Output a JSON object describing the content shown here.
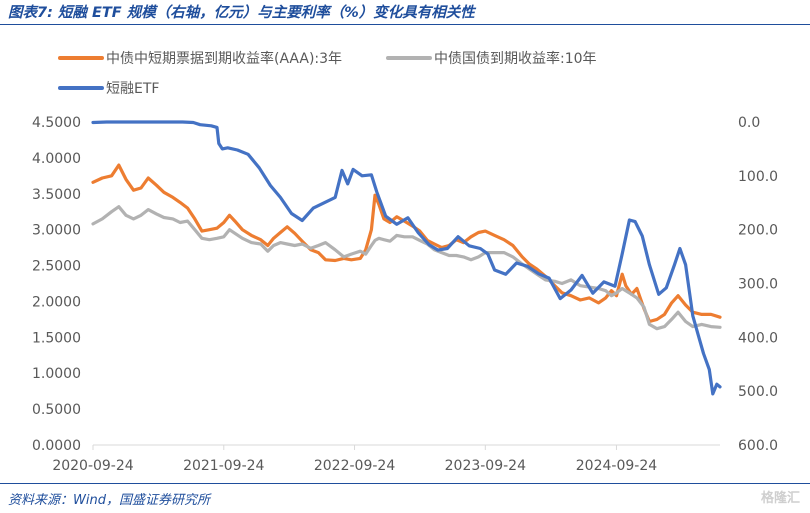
{
  "header": {
    "title": "图表7: 短融 ETF 规模（右轴，亿元）与主要利率（%）变化具有相关性"
  },
  "footer": {
    "source": "资料来源：Wind，国盛证券研究所",
    "watermark": "格隆汇"
  },
  "colors": {
    "brand": "#1f4e9c",
    "series_orange": "#ed7d31",
    "series_gray": "#b2b2b2",
    "series_blue": "#4472c4",
    "axis_text": "#595959",
    "axis_line": "#d9d9d9"
  },
  "chart_data": {
    "type": "line",
    "legend_position": "top-left",
    "grid": false,
    "x_ticks": [
      "2020-09-24",
      "2021-09-24",
      "2022-09-24",
      "2023-09-24",
      "2024-09-24"
    ],
    "x_range": [
      "2020-09-24",
      "2025-07-10"
    ],
    "ylim_left": [
      0,
      4.5
    ],
    "yticks_left": [
      "0.0000",
      "0.5000",
      "1.0000",
      "1.5000",
      "2.0000",
      "2.5000",
      "3.0000",
      "3.5000",
      "4.0000",
      "4.5000"
    ],
    "ylim_right": [
      0,
      600
    ],
    "right_axis_inverted": true,
    "yticks_right": [
      "0.0",
      "100.0",
      "200.0",
      "300.0",
      "400.0",
      "500.0",
      "600.0"
    ],
    "series": [
      {
        "name": "中债中短期票据到期收益率(AAA):3年",
        "axis": "left",
        "color": "#ed7d31",
        "points": [
          [
            "2020-09-24",
            3.66
          ],
          [
            "2020-10-20",
            3.72
          ],
          [
            "2020-11-15",
            3.75
          ],
          [
            "2020-12-05",
            3.9
          ],
          [
            "2020-12-25",
            3.7
          ],
          [
            "2021-01-15",
            3.55
          ],
          [
            "2021-02-05",
            3.58
          ],
          [
            "2021-02-25",
            3.72
          ],
          [
            "2021-03-20",
            3.62
          ],
          [
            "2021-04-10",
            3.52
          ],
          [
            "2021-05-05",
            3.45
          ],
          [
            "2021-05-25",
            3.38
          ],
          [
            "2021-06-15",
            3.3
          ],
          [
            "2021-07-05",
            3.15
          ],
          [
            "2021-07-25",
            2.98
          ],
          [
            "2021-08-15",
            3.0
          ],
          [
            "2021-09-05",
            3.02
          ],
          [
            "2021-09-24",
            3.1
          ],
          [
            "2021-10-10",
            3.2
          ],
          [
            "2021-10-25",
            3.12
          ],
          [
            "2021-11-15",
            3.0
          ],
          [
            "2021-12-10",
            2.92
          ],
          [
            "2022-01-05",
            2.86
          ],
          [
            "2022-01-25",
            2.78
          ],
          [
            "2022-02-10",
            2.88
          ],
          [
            "2022-03-01",
            2.96
          ],
          [
            "2022-03-20",
            3.04
          ],
          [
            "2022-04-10",
            2.95
          ],
          [
            "2022-05-01",
            2.84
          ],
          [
            "2022-05-25",
            2.72
          ],
          [
            "2022-06-15",
            2.68
          ],
          [
            "2022-07-05",
            2.58
          ],
          [
            "2022-08-01",
            2.57
          ],
          [
            "2022-08-25",
            2.6
          ],
          [
            "2022-09-15",
            2.58
          ],
          [
            "2022-10-10",
            2.6
          ],
          [
            "2022-10-25",
            2.72
          ],
          [
            "2022-11-10",
            3.0
          ],
          [
            "2022-11-20",
            3.48
          ],
          [
            "2022-12-01",
            3.35
          ],
          [
            "2022-12-15",
            3.15
          ],
          [
            "2023-01-01",
            3.1
          ],
          [
            "2023-01-20",
            3.18
          ],
          [
            "2023-02-10",
            3.12
          ],
          [
            "2023-03-05",
            3.05
          ],
          [
            "2023-03-25",
            2.98
          ],
          [
            "2023-04-15",
            2.85
          ],
          [
            "2023-05-05",
            2.8
          ],
          [
            "2023-05-25",
            2.75
          ],
          [
            "2023-06-15",
            2.78
          ],
          [
            "2023-07-05",
            2.86
          ],
          [
            "2023-07-25",
            2.82
          ],
          [
            "2023-08-15",
            2.9
          ],
          [
            "2023-09-05",
            2.96
          ],
          [
            "2023-09-24",
            2.98
          ],
          [
            "2023-10-20",
            2.92
          ],
          [
            "2023-11-15",
            2.86
          ],
          [
            "2023-12-10",
            2.78
          ],
          [
            "2024-01-05",
            2.62
          ],
          [
            "2024-01-25",
            2.52
          ],
          [
            "2024-02-15",
            2.45
          ],
          [
            "2024-03-10",
            2.35
          ],
          [
            "2024-04-05",
            2.22
          ],
          [
            "2024-04-25",
            2.12
          ],
          [
            "2024-05-20",
            2.08
          ],
          [
            "2024-06-15",
            2.02
          ],
          [
            "2024-07-10",
            2.05
          ],
          [
            "2024-08-05",
            1.98
          ],
          [
            "2024-08-25",
            2.05
          ],
          [
            "2024-09-10",
            2.15
          ],
          [
            "2024-09-24",
            2.08
          ],
          [
            "2024-10-10",
            2.38
          ],
          [
            "2024-10-20",
            2.22
          ],
          [
            "2024-11-05",
            2.1
          ],
          [
            "2024-11-20",
            2.18
          ],
          [
            "2024-12-10",
            1.9
          ],
          [
            "2024-12-25",
            1.72
          ],
          [
            "2025-01-15",
            1.75
          ],
          [
            "2025-02-05",
            1.82
          ],
          [
            "2025-02-25",
            1.98
          ],
          [
            "2025-03-15",
            2.08
          ],
          [
            "2025-04-05",
            1.95
          ],
          [
            "2025-04-25",
            1.85
          ],
          [
            "2025-05-20",
            1.82
          ],
          [
            "2025-06-15",
            1.82
          ],
          [
            "2025-07-10",
            1.78
          ]
        ]
      },
      {
        "name": "中债国债到期收益率:10年",
        "axis": "left",
        "color": "#b2b2b2",
        "points": [
          [
            "2020-09-24",
            3.08
          ],
          [
            "2020-10-20",
            3.15
          ],
          [
            "2020-11-15",
            3.25
          ],
          [
            "2020-12-05",
            3.32
          ],
          [
            "2020-12-25",
            3.2
          ],
          [
            "2021-01-15",
            3.15
          ],
          [
            "2021-02-05",
            3.2
          ],
          [
            "2021-02-25",
            3.28
          ],
          [
            "2021-03-20",
            3.22
          ],
          [
            "2021-04-10",
            3.17
          ],
          [
            "2021-05-05",
            3.15
          ],
          [
            "2021-05-25",
            3.1
          ],
          [
            "2021-06-15",
            3.12
          ],
          [
            "2021-07-05",
            3.0
          ],
          [
            "2021-07-25",
            2.88
          ],
          [
            "2021-08-15",
            2.86
          ],
          [
            "2021-09-05",
            2.88
          ],
          [
            "2021-09-24",
            2.9
          ],
          [
            "2021-10-10",
            3.0
          ],
          [
            "2021-10-25",
            2.95
          ],
          [
            "2021-11-15",
            2.88
          ],
          [
            "2021-12-10",
            2.82
          ],
          [
            "2022-01-05",
            2.8
          ],
          [
            "2022-01-25",
            2.7
          ],
          [
            "2022-02-10",
            2.78
          ],
          [
            "2022-03-01",
            2.82
          ],
          [
            "2022-03-20",
            2.8
          ],
          [
            "2022-04-10",
            2.78
          ],
          [
            "2022-05-01",
            2.8
          ],
          [
            "2022-05-25",
            2.74
          ],
          [
            "2022-06-15",
            2.78
          ],
          [
            "2022-07-05",
            2.82
          ],
          [
            "2022-08-01",
            2.72
          ],
          [
            "2022-08-25",
            2.62
          ],
          [
            "2022-09-15",
            2.66
          ],
          [
            "2022-10-10",
            2.7
          ],
          [
            "2022-10-25",
            2.66
          ],
          [
            "2022-11-10",
            2.78
          ],
          [
            "2022-11-20",
            2.85
          ],
          [
            "2022-12-01",
            2.88
          ],
          [
            "2022-12-15",
            2.86
          ],
          [
            "2023-01-01",
            2.84
          ],
          [
            "2023-01-20",
            2.92
          ],
          [
            "2023-02-10",
            2.9
          ],
          [
            "2023-03-05",
            2.9
          ],
          [
            "2023-03-25",
            2.85
          ],
          [
            "2023-04-15",
            2.8
          ],
          [
            "2023-05-05",
            2.72
          ],
          [
            "2023-05-25",
            2.68
          ],
          [
            "2023-06-15",
            2.64
          ],
          [
            "2023-07-05",
            2.64
          ],
          [
            "2023-07-25",
            2.62
          ],
          [
            "2023-08-15",
            2.58
          ],
          [
            "2023-09-05",
            2.62
          ],
          [
            "2023-09-24",
            2.68
          ],
          [
            "2023-10-20",
            2.68
          ],
          [
            "2023-11-15",
            2.68
          ],
          [
            "2023-12-10",
            2.62
          ],
          [
            "2024-01-05",
            2.52
          ],
          [
            "2024-01-25",
            2.45
          ],
          [
            "2024-02-15",
            2.38
          ],
          [
            "2024-03-10",
            2.3
          ],
          [
            "2024-04-05",
            2.28
          ],
          [
            "2024-04-25",
            2.25
          ],
          [
            "2024-05-20",
            2.3
          ],
          [
            "2024-06-15",
            2.22
          ],
          [
            "2024-07-10",
            2.2
          ],
          [
            "2024-08-05",
            2.18
          ],
          [
            "2024-08-25",
            2.15
          ],
          [
            "2024-09-10",
            2.08
          ],
          [
            "2024-09-24",
            2.12
          ],
          [
            "2024-10-10",
            2.18
          ],
          [
            "2024-10-20",
            2.15
          ],
          [
            "2024-11-05",
            2.1
          ],
          [
            "2024-11-20",
            2.05
          ],
          [
            "2024-12-10",
            1.92
          ],
          [
            "2024-12-25",
            1.68
          ],
          [
            "2025-01-15",
            1.62
          ],
          [
            "2025-02-05",
            1.65
          ],
          [
            "2025-02-25",
            1.75
          ],
          [
            "2025-03-15",
            1.85
          ],
          [
            "2025-04-05",
            1.72
          ],
          [
            "2025-04-25",
            1.65
          ],
          [
            "2025-05-20",
            1.68
          ],
          [
            "2025-06-15",
            1.65
          ],
          [
            "2025-07-10",
            1.64
          ]
        ]
      },
      {
        "name": "短融ETF",
        "axis": "right",
        "color": "#4472c4",
        "points": [
          [
            "2020-09-24",
            1
          ],
          [
            "2020-11-01",
            0
          ],
          [
            "2021-01-01",
            0
          ],
          [
            "2021-03-01",
            0
          ],
          [
            "2021-05-01",
            0
          ],
          [
            "2021-06-01",
            0
          ],
          [
            "2021-07-01",
            1
          ],
          [
            "2021-07-20",
            5
          ],
          [
            "2021-08-20",
            7
          ],
          [
            "2021-09-05",
            10
          ],
          [
            "2021-09-10",
            40
          ],
          [
            "2021-09-20",
            50
          ],
          [
            "2021-10-05",
            48
          ],
          [
            "2021-11-01",
            52
          ],
          [
            "2021-12-01",
            60
          ],
          [
            "2022-01-01",
            85
          ],
          [
            "2022-02-01",
            118
          ],
          [
            "2022-03-01",
            140
          ],
          [
            "2022-04-01",
            170
          ],
          [
            "2022-05-01",
            183
          ],
          [
            "2022-06-01",
            160
          ],
          [
            "2022-07-01",
            150
          ],
          [
            "2022-08-01",
            140
          ],
          [
            "2022-08-20",
            90
          ],
          [
            "2022-09-05",
            115
          ],
          [
            "2022-09-20",
            88
          ],
          [
            "2022-10-15",
            100
          ],
          [
            "2022-11-10",
            98
          ],
          [
            "2022-11-25",
            130
          ],
          [
            "2022-12-20",
            175
          ],
          [
            "2023-01-20",
            190
          ],
          [
            "2023-02-20",
            178
          ],
          [
            "2023-03-20",
            205
          ],
          [
            "2023-04-20",
            228
          ],
          [
            "2023-05-15",
            238
          ],
          [
            "2023-06-10",
            235
          ],
          [
            "2023-07-10",
            213
          ],
          [
            "2023-08-10",
            230
          ],
          [
            "2023-09-10",
            235
          ],
          [
            "2023-10-01",
            245
          ],
          [
            "2023-10-20",
            275
          ],
          [
            "2023-11-20",
            283
          ],
          [
            "2023-12-20",
            262
          ],
          [
            "2024-01-20",
            268
          ],
          [
            "2024-02-20",
            282
          ],
          [
            "2024-03-20",
            290
          ],
          [
            "2024-04-20",
            328
          ],
          [
            "2024-05-20",
            312
          ],
          [
            "2024-06-20",
            285
          ],
          [
            "2024-07-20",
            318
          ],
          [
            "2024-08-20",
            297
          ],
          [
            "2024-09-20",
            305
          ],
          [
            "2024-10-10",
            245
          ],
          [
            "2024-10-30",
            182
          ],
          [
            "2024-11-15",
            185
          ],
          [
            "2024-12-05",
            212
          ],
          [
            "2024-12-25",
            265
          ],
          [
            "2025-01-20",
            320
          ],
          [
            "2025-02-10",
            308
          ],
          [
            "2025-03-05",
            265
          ],
          [
            "2025-03-20",
            235
          ],
          [
            "2025-04-05",
            265
          ],
          [
            "2025-04-25",
            360
          ],
          [
            "2025-05-10",
            395
          ],
          [
            "2025-05-25",
            430
          ],
          [
            "2025-06-10",
            460
          ],
          [
            "2025-06-20",
            505
          ],
          [
            "2025-07-01",
            487
          ],
          [
            "2025-07-10",
            492
          ]
        ]
      }
    ]
  }
}
